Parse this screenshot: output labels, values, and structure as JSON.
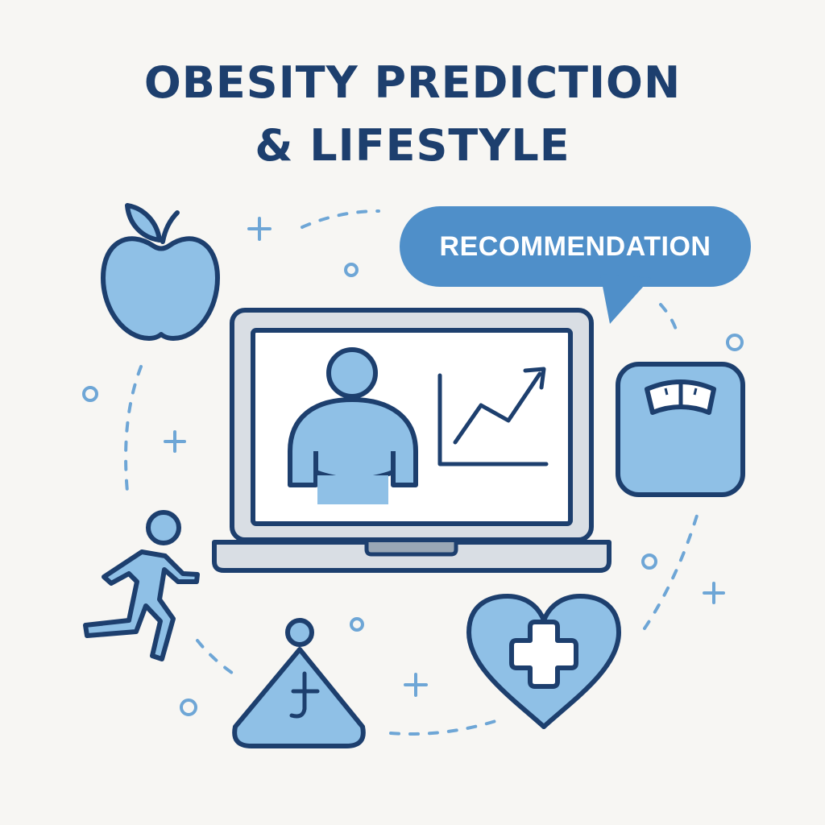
{
  "title": {
    "line1": "OBESITY PREDICTION",
    "line2": "& LIFESTYLE"
  },
  "bubble": {
    "label": "RECOMMENDATION"
  },
  "icons": [
    "apple-icon",
    "laptop-icon",
    "person-icon",
    "trend-chart-icon",
    "scale-icon",
    "runner-icon",
    "meditation-icon",
    "heart-plus-icon",
    "speech-bubble-icon"
  ],
  "colors": {
    "outline": "#1d3f6e",
    "fill": "#8fc0e6",
    "bubble": "#4f8fc9",
    "background": "#f7f6f3",
    "screen": "#ffffff",
    "laptop_body": "#d9dee4"
  }
}
